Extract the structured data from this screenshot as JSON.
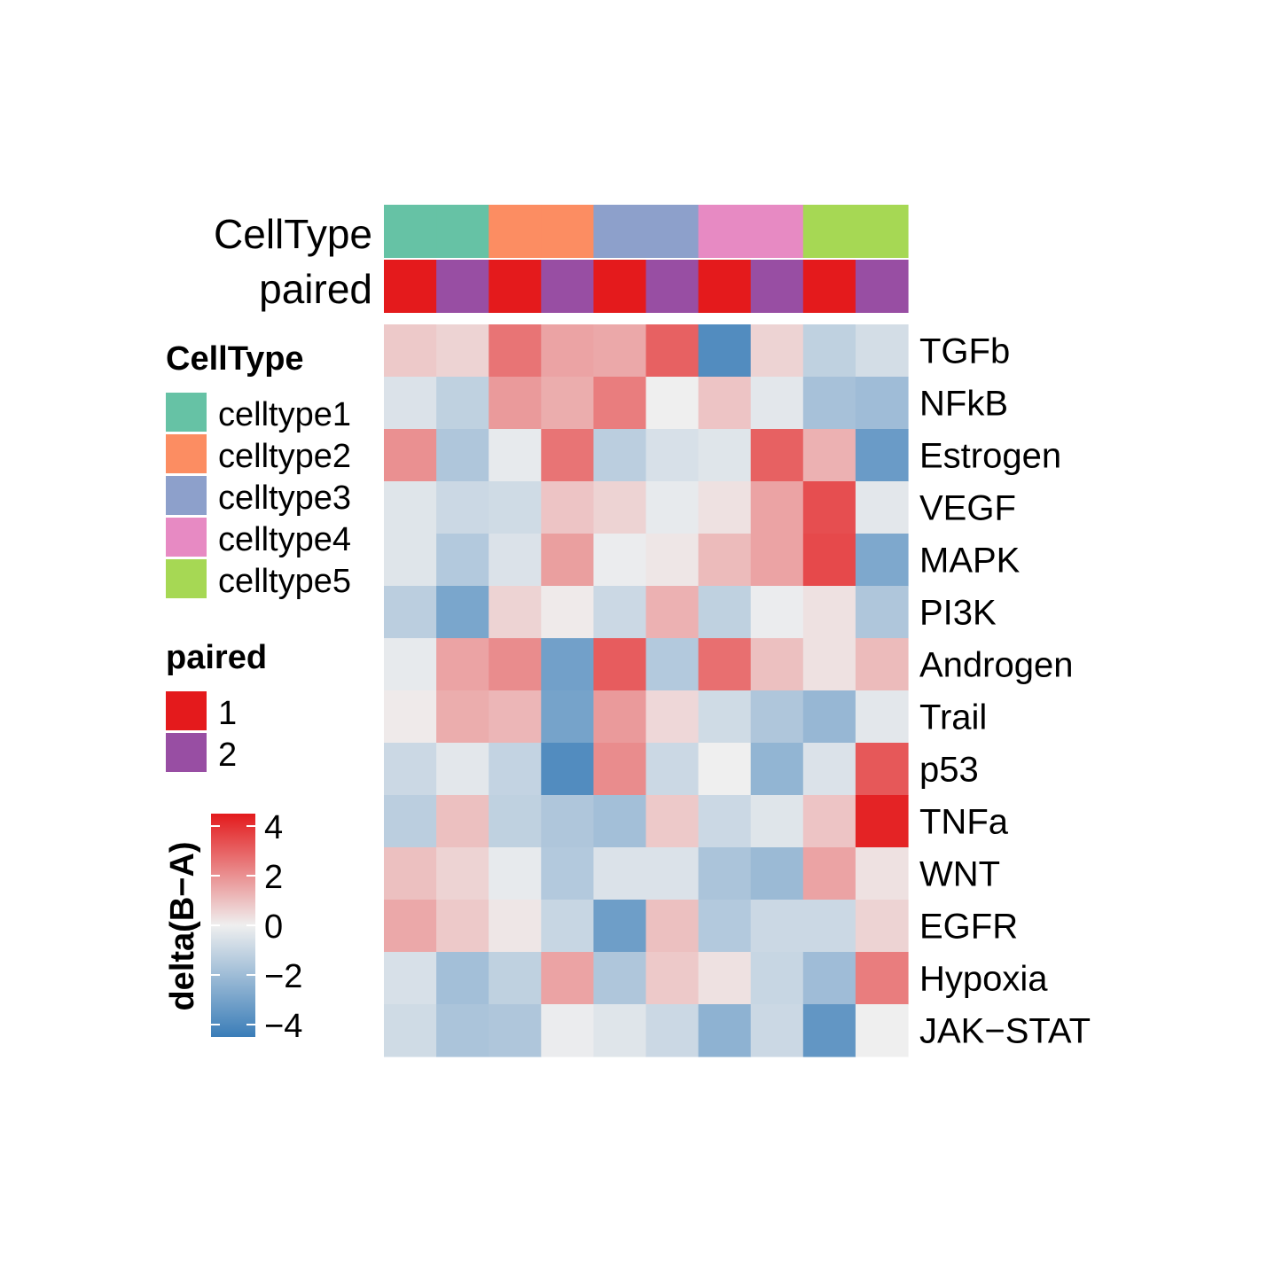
{
  "chart_data": {
    "type": "heatmap",
    "rows": [
      "TGFb",
      "NFkB",
      "Estrogen",
      "VEGF",
      "MAPK",
      "PI3K",
      "Androgen",
      "Trail",
      "p53",
      "TNFa",
      "WNT",
      "EGFR",
      "Hypoxia",
      "JAK−STAT"
    ],
    "columns": 10,
    "values": [
      [
        0.8,
        0.6,
        2.6,
        1.6,
        1.5,
        3.0,
        -3.9,
        0.6,
        -1.2,
        -0.7
      ],
      [
        -0.5,
        -1.2,
        1.8,
        1.4,
        2.4,
        0.0,
        0.9,
        -0.3,
        -1.8,
        -2.0
      ],
      [
        2.0,
        -1.6,
        -0.2,
        2.6,
        -1.3,
        -0.6,
        -0.4,
        3.0,
        1.3,
        -3.3
      ],
      [
        -0.4,
        -0.9,
        -0.8,
        0.9,
        0.6,
        -0.2,
        0.3,
        1.6,
        3.4,
        -0.3
      ],
      [
        -0.4,
        -1.5,
        -0.5,
        1.7,
        -0.1,
        0.2,
        1.1,
        1.6,
        3.5,
        -2.8
      ],
      [
        -1.3,
        -2.9,
        0.6,
        0.1,
        -0.9,
        1.3,
        -1.2,
        -0.1,
        0.3,
        -1.6
      ],
      [
        -0.2,
        1.6,
        2.1,
        -3.1,
        3.1,
        -1.5,
        2.7,
        1.0,
        0.3,
        1.1
      ],
      [
        0.1,
        1.4,
        1.2,
        -3.0,
        1.8,
        0.5,
        -0.8,
        -1.6,
        -2.2,
        -0.3
      ],
      [
        -0.9,
        -0.3,
        -1.1,
        -3.9,
        2.1,
        -0.9,
        0.0,
        -2.3,
        -0.5,
        3.2
      ],
      [
        -1.3,
        1.0,
        -1.2,
        -1.6,
        -1.9,
        0.8,
        -0.9,
        -0.4,
        0.9,
        4.3
      ],
      [
        1.0,
        0.6,
        -0.2,
        -1.5,
        -0.5,
        -0.5,
        -1.7,
        -2.1,
        1.6,
        0.3
      ],
      [
        1.5,
        0.8,
        0.2,
        -1.0,
        -3.2,
        1.0,
        -1.5,
        -0.9,
        -0.9,
        0.6
      ],
      [
        -0.6,
        -1.9,
        -1.2,
        1.6,
        -1.6,
        0.8,
        0.3,
        -1.0,
        -2.0,
        2.4
      ],
      [
        -0.8,
        -1.7,
        -1.6,
        -0.1,
        -0.4,
        -0.9,
        -2.4,
        -0.9,
        -3.5,
        0.0
      ]
    ],
    "annotations": {
      "CellType": [
        "celltype1",
        "celltype1",
        "celltype2",
        "celltype2",
        "celltype3",
        "celltype3",
        "celltype4",
        "celltype4",
        "celltype5",
        "celltype5"
      ],
      "paired": [
        "1",
        "2",
        "1",
        "2",
        "1",
        "2",
        "1",
        "2",
        "1",
        "2"
      ]
    },
    "annotation_labels": [
      "CellType",
      "paired"
    ],
    "legends": {
      "celltype": {
        "title": "CellType",
        "entries": [
          {
            "label": "celltype1",
            "color": "#66C2A5"
          },
          {
            "label": "celltype2",
            "color": "#FC8D62"
          },
          {
            "label": "celltype3",
            "color": "#8DA0CB"
          },
          {
            "label": "celltype4",
            "color": "#E78AC3"
          },
          {
            "label": "celltype5",
            "color": "#A6D854"
          }
        ]
      },
      "paired": {
        "title": "paired",
        "entries": [
          {
            "label": "1",
            "color": "#E41A1C"
          },
          {
            "label": "2",
            "color": "#984EA3"
          }
        ]
      },
      "colorbar": {
        "title": "delta(B−A)",
        "ticks": [
          "4",
          "2",
          "0",
          "−2",
          "−4"
        ],
        "tick_values": [
          4,
          2,
          0,
          -2,
          -4
        ],
        "range": [
          -4.5,
          4.5
        ],
        "colors": {
          "low": "#3A7DB8",
          "mid": "#EFEFEF",
          "high": "#E31A1C"
        }
      }
    }
  }
}
